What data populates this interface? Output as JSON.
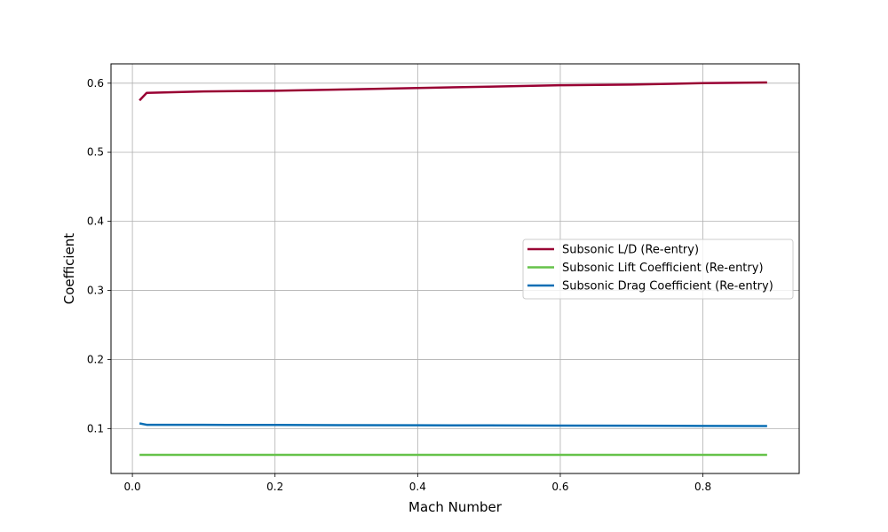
{
  "chart_data": {
    "type": "line",
    "xlabel": "Mach Number",
    "ylabel": "Coefficient",
    "xlim": [
      -0.03,
      0.935
    ],
    "ylim": [
      0.035,
      0.628
    ],
    "xticks": [
      0.0,
      0.2,
      0.4,
      0.6,
      0.8
    ],
    "xtick_labels": [
      "0.0",
      "0.2",
      "0.4",
      "0.6",
      "0.8"
    ],
    "yticks": [
      0.1,
      0.2,
      0.3,
      0.4,
      0.5,
      0.6
    ],
    "ytick_labels": [
      "0.1",
      "0.2",
      "0.3",
      "0.4",
      "0.5",
      "0.6"
    ],
    "grid": true,
    "legend_position": "center-right",
    "series": [
      {
        "name": "Subsonic L/D (Re-entry)",
        "color": "#990033",
        "x": [
          0.01,
          0.02,
          0.1,
          0.2,
          0.3,
          0.4,
          0.5,
          0.6,
          0.7,
          0.8,
          0.89
        ],
        "y": [
          0.575,
          0.586,
          0.588,
          0.589,
          0.591,
          0.593,
          0.595,
          0.597,
          0.598,
          0.6,
          0.601
        ]
      },
      {
        "name": "Subsonic Lift Coefficient (Re-entry)",
        "color": "#66c24a",
        "x": [
          0.01,
          0.02,
          0.1,
          0.2,
          0.3,
          0.4,
          0.5,
          0.6,
          0.7,
          0.8,
          0.89
        ],
        "y": [
          0.062,
          0.062,
          0.062,
          0.062,
          0.062,
          0.062,
          0.062,
          0.062,
          0.062,
          0.062,
          0.062
        ]
      },
      {
        "name": "Subsonic Drag Coefficient (Re-entry)",
        "color": "#0a6eb4",
        "x": [
          0.01,
          0.02,
          0.1,
          0.2,
          0.3,
          0.4,
          0.5,
          0.6,
          0.7,
          0.8,
          0.89
        ],
        "y": [
          0.1075,
          0.1055,
          0.1054,
          0.1052,
          0.105,
          0.1048,
          0.1046,
          0.1043,
          0.1041,
          0.1039,
          0.1037
        ]
      }
    ]
  }
}
